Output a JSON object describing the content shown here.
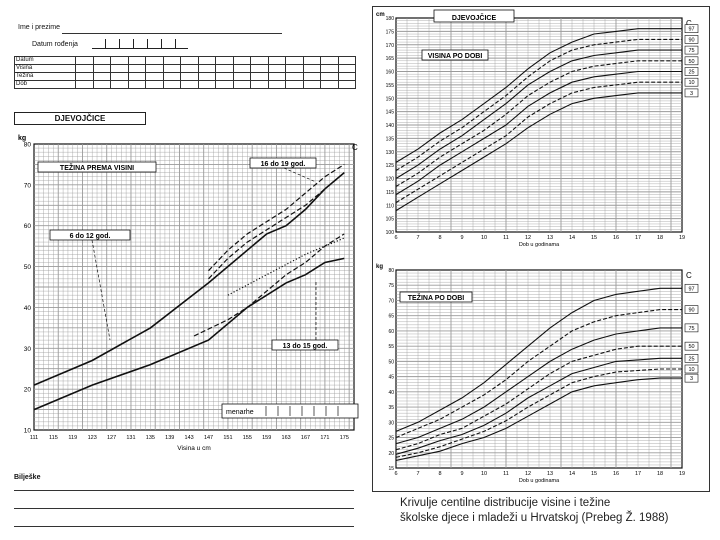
{
  "form": {
    "name_label": "Ime i prezime",
    "dob_label": "Datum rođenja",
    "table_rows": [
      "Datum",
      "Visina",
      "Težina",
      "Dob"
    ],
    "girls_label": "DJEVOJČICE",
    "notes_label": "Bilješke"
  },
  "caption": {
    "line1": "Krivulje centilne distribucije visine i težine",
    "line2": "školske djece i mladeži u Hrvatskoj (Prebeg Ž. 1988)"
  },
  "colors": {
    "line": "#111111",
    "grid": "#9a9a9a"
  },
  "chart_data": [
    {
      "type": "line",
      "title": "TEŽINA PREMA VISINI",
      "xlabel": "Visina u cm",
      "ylabel": "kg",
      "corner_label": "C",
      "x_ticks": [
        111,
        115,
        119,
        123,
        127,
        131,
        135,
        139,
        143,
        147,
        151,
        155,
        159,
        163,
        167,
        171,
        175
      ],
      "xlim": [
        111,
        177
      ],
      "ylim": [
        10,
        80
      ],
      "y_ticks": [
        10,
        20,
        30,
        40,
        50,
        60,
        70,
        80
      ],
      "annotations": [
        "6 do 12 god.",
        "16 do 19 god.",
        "13 do 15 god.",
        "menarhe"
      ],
      "series": [
        {
          "style": "solid",
          "x": [
            111,
            123,
            135,
            147,
            159,
            163,
            167,
            171,
            175
          ],
          "y": [
            21,
            27,
            35,
            46,
            58,
            60,
            64,
            69,
            73
          ]
        },
        {
          "style": "solid",
          "x": [
            111,
            123,
            135,
            147,
            155,
            163,
            167,
            171,
            175
          ],
          "y": [
            15,
            21,
            26,
            32,
            40,
            46,
            48,
            51,
            52
          ]
        },
        {
          "style": "dashed",
          "x": [
            147,
            151,
            155,
            159,
            163,
            167,
            171,
            175
          ],
          "y": [
            47,
            52,
            56,
            59,
            62,
            65,
            69,
            73
          ]
        },
        {
          "style": "dashed",
          "x": [
            147,
            151,
            155,
            159,
            163,
            167,
            171,
            175
          ],
          "y": [
            49,
            54,
            58,
            61,
            64,
            68,
            72,
            75
          ]
        },
        {
          "style": "dashed",
          "x": [
            144,
            151,
            155,
            159,
            163,
            167,
            171,
            175
          ],
          "y": [
            33,
            37,
            40,
            44,
            48,
            51,
            55,
            58
          ]
        },
        {
          "style": "dotted",
          "x": [
            151,
            159,
            167,
            175
          ],
          "y": [
            43,
            48,
            53,
            57
          ]
        }
      ]
    },
    {
      "type": "line",
      "title": "DJEVOJČICE",
      "subtitle": "VISINA PO DOBI",
      "xlabel": "Dob u godinama",
      "ylabel": "cm",
      "corner_label": "C",
      "xlim": [
        6,
        19
      ],
      "ylim": [
        100,
        180
      ],
      "x_ticks": [
        6,
        7,
        8,
        9,
        10,
        11,
        12,
        13,
        14,
        15,
        16,
        17,
        18,
        19
      ],
      "y_ticks": [
        100,
        105,
        110,
        115,
        120,
        125,
        130,
        135,
        140,
        145,
        150,
        155,
        160,
        165,
        170,
        175,
        180
      ],
      "x": [
        6,
        7,
        8,
        9,
        10,
        11,
        12,
        13,
        14,
        15,
        16,
        17,
        18,
        19
      ],
      "series": [
        {
          "name": "97",
          "values": [
            126,
            131,
            137,
            142,
            148,
            154,
            161,
            167,
            171,
            174,
            175,
            176,
            176,
            176
          ]
        },
        {
          "name": "90",
          "values": [
            123,
            128,
            134,
            139,
            145,
            151,
            158,
            164,
            168,
            170,
            171,
            172,
            172,
            172
          ]
        },
        {
          "name": "75",
          "values": [
            120,
            125,
            131,
            136,
            142,
            148,
            155,
            160,
            164,
            166,
            167,
            168,
            168,
            168
          ]
        },
        {
          "name": "50",
          "values": [
            117,
            122,
            128,
            133,
            138,
            144,
            151,
            156,
            160,
            162,
            163,
            164,
            164,
            164
          ]
        },
        {
          "name": "25",
          "values": [
            114,
            119,
            125,
            130,
            135,
            140,
            147,
            152,
            156,
            158,
            159,
            160,
            160,
            160
          ]
        },
        {
          "name": "10",
          "values": [
            111,
            116,
            121,
            126,
            131,
            136,
            143,
            148,
            152,
            154,
            155,
            156,
            156,
            156
          ]
        },
        {
          "name": "3",
          "values": [
            108,
            113,
            118,
            123,
            128,
            133,
            139,
            144,
            148,
            150,
            151,
            152,
            152,
            152
          ]
        }
      ]
    },
    {
      "type": "line",
      "title": "TEŽINA PO DOBI",
      "xlabel": "Dob u godinama",
      "ylabel": "kg",
      "corner_label": "C",
      "xlim": [
        6,
        19
      ],
      "ylim": [
        15,
        80
      ],
      "x_ticks": [
        6,
        7,
        8,
        9,
        10,
        11,
        12,
        13,
        14,
        15,
        16,
        17,
        18,
        19
      ],
      "y_ticks": [
        15,
        20,
        25,
        30,
        35,
        40,
        45,
        50,
        55,
        60,
        65,
        70,
        75,
        80
      ],
      "x": [
        6,
        7,
        8,
        9,
        10,
        11,
        12,
        13,
        14,
        15,
        16,
        17,
        18,
        19
      ],
      "series": [
        {
          "name": "97",
          "values": [
            27,
            30,
            34,
            38,
            43,
            49,
            55,
            61,
            66,
            70,
            72,
            73,
            74,
            74
          ]
        },
        {
          "name": "90",
          "values": [
            25,
            28,
            31,
            35,
            39,
            44,
            50,
            55,
            60,
            63,
            65,
            66,
            67,
            67
          ]
        },
        {
          "name": "75",
          "values": [
            23,
            25,
            28,
            31,
            35,
            40,
            45,
            50,
            54,
            57,
            59,
            60,
            61,
            61
          ]
        },
        {
          "name": "50",
          "values": [
            21,
            23,
            26,
            28,
            32,
            36,
            41,
            46,
            50,
            52,
            54,
            55,
            55,
            55
          ]
        },
        {
          "name": "25",
          "values": [
            19.5,
            21.5,
            24,
            26,
            29,
            33,
            38,
            42,
            46,
            48,
            50,
            50.5,
            51,
            51
          ]
        },
        {
          "name": "10",
          "values": [
            18.5,
            20,
            22,
            24.5,
            27,
            30.5,
            35,
            39,
            43,
            45,
            46.5,
            47,
            47.5,
            47.5
          ]
        },
        {
          "name": "3",
          "values": [
            17.5,
            19,
            20.5,
            23,
            25,
            28,
            32,
            36,
            40,
            42,
            43,
            44,
            44.5,
            44.5
          ]
        }
      ]
    }
  ]
}
